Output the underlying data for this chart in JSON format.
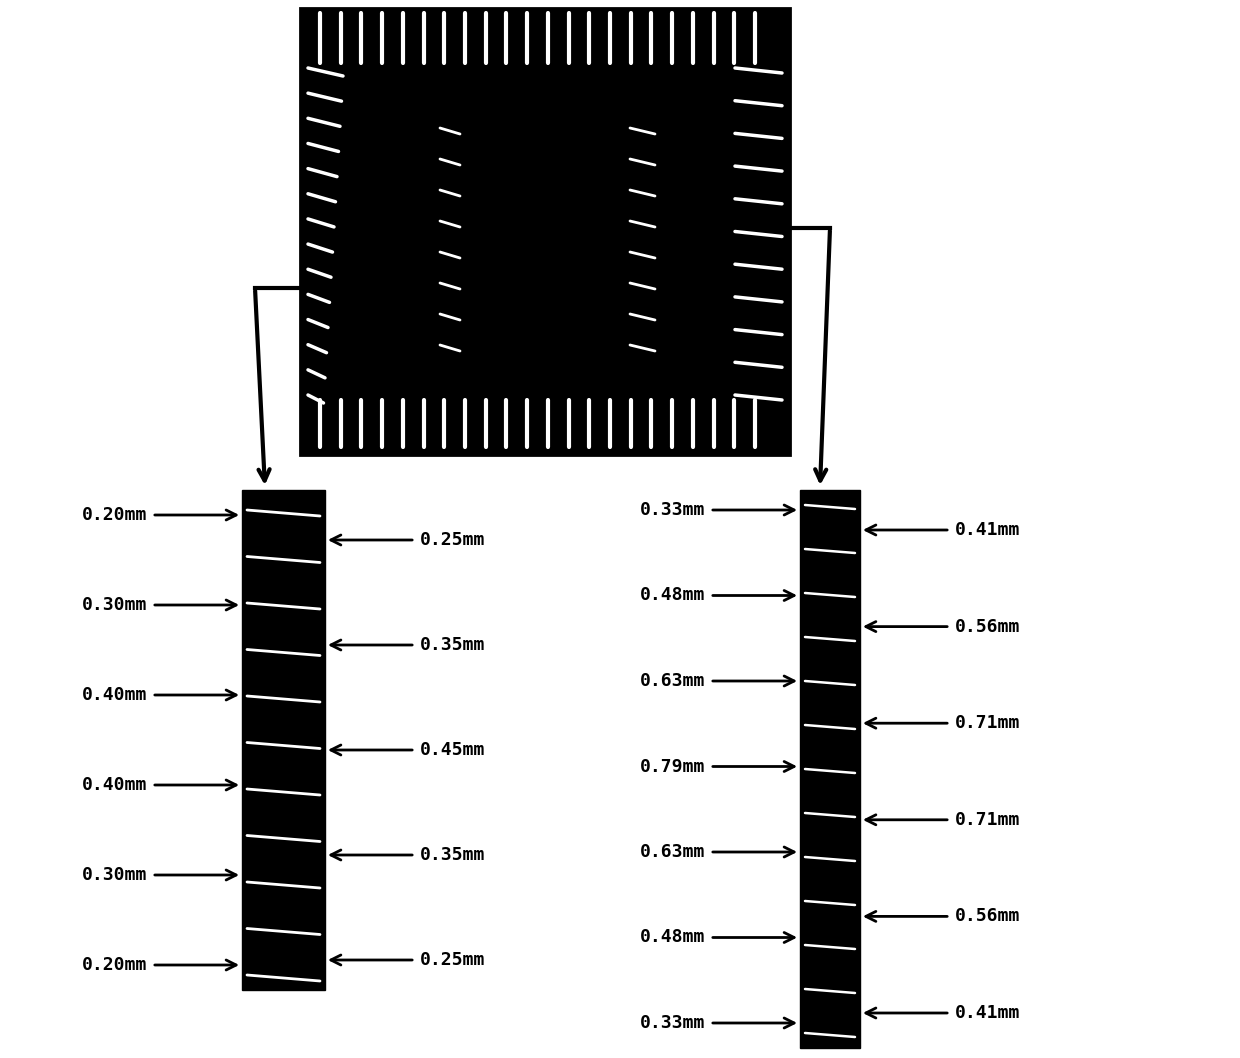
{
  "bg_color": "#ffffff",
  "left_labels_left": [
    "0.20mm",
    "0.30mm",
    "0.40mm",
    "0.40mm",
    "0.30mm",
    "0.20mm"
  ],
  "left_labels_right": [
    "0.25mm",
    "0.35mm",
    "0.45mm",
    "0.35mm",
    "0.25mm"
  ],
  "right_labels_left": [
    "0.33mm",
    "0.48mm",
    "0.63mm",
    "0.79mm",
    "0.63mm",
    "0.48mm",
    "0.33mm"
  ],
  "right_labels_right": [
    "0.41mm",
    "0.56mm",
    "0.71mm",
    "0.71mm",
    "0.56mm",
    "0.41mm"
  ],
  "font_size": 13
}
